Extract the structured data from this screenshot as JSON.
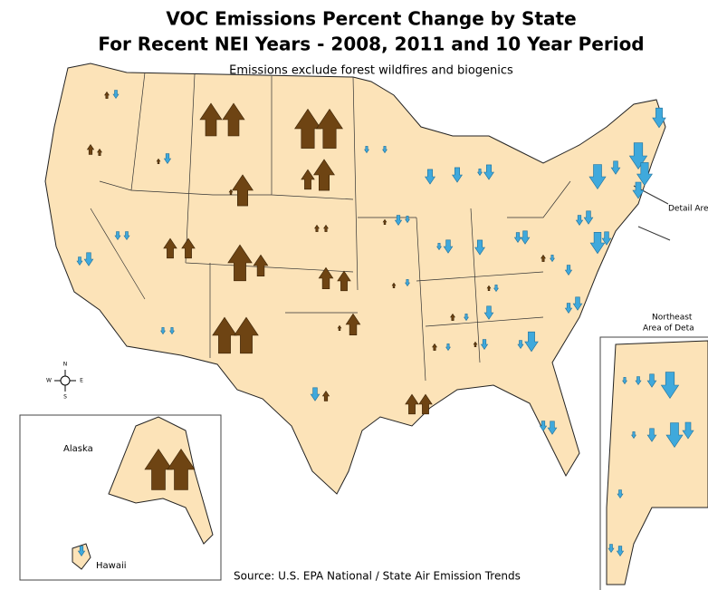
{
  "title": [
    "VOC Emissions Percent Change by State",
    "For Recent NEI Years - 2008, 2011 and 10 Year Period"
  ],
  "subtitle": "Emissions exclude forest wildfires and biogenics",
  "labels": {
    "detail_area": "Detail Area",
    "inset_title": [
      "Northeast",
      "Area of Deta"
    ],
    "alaska": "Alaska",
    "hawaii": "Hawaii"
  },
  "compass": {
    "n": "N",
    "e": "E",
    "s": "S",
    "w": "W"
  },
  "source": "Source: U.S. EPA National / State Air Emission Trends"
}
